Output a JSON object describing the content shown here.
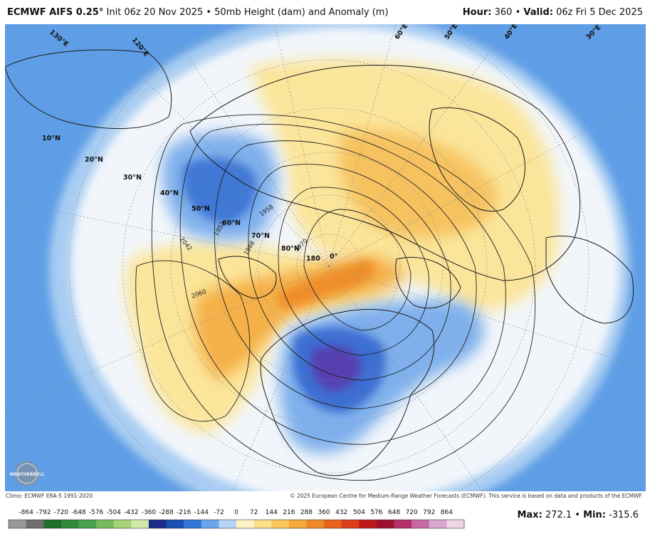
{
  "header": {
    "model": "ECMWF AIFS 0.25",
    "degree": "°",
    "init": "Init 06z 20 Nov 2025",
    "product": "50mb Height (dam) and Anomaly (m)",
    "hour_label": "Hour:",
    "hour_value": "360",
    "valid_label": "Valid:",
    "valid_value": "06z Fri 5 Dec 2025"
  },
  "map": {
    "lat_labels": [
      "10°N",
      "20°N",
      "30°N",
      "40°N",
      "50°N",
      "60°N",
      "70°N",
      "80°N"
    ],
    "lon_labels": [
      "180",
      "0°",
      "60°E",
      "50°E",
      "40°E",
      "30°E",
      "120°E",
      "130°E"
    ],
    "contour_labels": [
      "2042",
      "2060",
      "1958",
      "1988",
      "1970",
      "1952"
    ],
    "colors": {
      "ocean_far": "#5f9ee6",
      "anomaly_neg_light": "#9cc4f0",
      "anomaly_neg_mid": "#3f7fd8",
      "anomaly_neg_deep": "#5a3fb0",
      "anomaly_pos_light": "#fde9a0",
      "anomaly_pos_mid": "#f6b84a",
      "anomaly_pos_deep": "#ee8a2a"
    }
  },
  "credits": {
    "climo": "Climo: ECMWF ERA-5 1991-2020",
    "copyright": "© 2025 European Centre for Medium-Range Weather Forecasts (ECMWF). This service is based on data and products of the ECMWF."
  },
  "logo_text": "WEATHERBELL",
  "colorbar": {
    "ticks": [
      "-864",
      "-792",
      "-720",
      "-648",
      "-576",
      "-504",
      "-432",
      "-360",
      "-288",
      "-216",
      "-144",
      "-72",
      "0",
      "72",
      "144",
      "216",
      "288",
      "360",
      "432",
      "504",
      "576",
      "648",
      "720",
      "792",
      "864"
    ],
    "colors": [
      "#9a9a9a",
      "#6e6e6e",
      "#1e6e2c",
      "#2f8a3a",
      "#4aa24c",
      "#78bb5c",
      "#a8d27a",
      "#d2e8a6",
      "#1c2a8a",
      "#1a4fb4",
      "#2f76d8",
      "#6aa6ec",
      "#b6d4f4",
      "#fdf3c4",
      "#fbe08a",
      "#f8c65a",
      "#f4a93a",
      "#ef8a2a",
      "#e8641e",
      "#dc3e1a",
      "#c01818",
      "#9e1030",
      "#b4306a",
      "#c86aa4",
      "#dca6cc",
      "#efd6e6"
    ]
  },
  "stats": {
    "max_label": "Max:",
    "max_value": "272.1",
    "min_label": "Min:",
    "min_value": "-315.6"
  }
}
